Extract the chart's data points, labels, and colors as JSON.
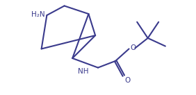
{
  "bg_color": "#ffffff",
  "line_color": "#3a3a8c",
  "line_width": 1.5,
  "font_size": 7.5,
  "fig_width": 2.82,
  "fig_height": 1.37,
  "dpi": 100,
  "xlim": [
    0,
    14
  ],
  "ylim": [
    0,
    7
  ]
}
